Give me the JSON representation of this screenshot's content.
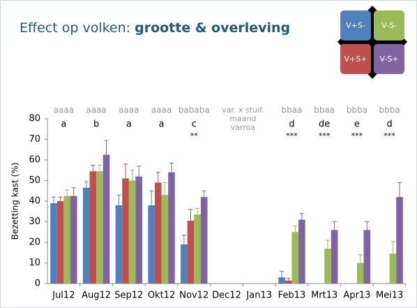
{
  "chart_data": {
    "type": "bar",
    "title_parts": [
      "Effect op volken:",
      "grootte & overleving"
    ],
    "ylabel": "Bezetting kast (%)",
    "categories": [
      "Jul12",
      "Aug12",
      "Sep12",
      "Okt12",
      "Nov12",
      "Dec12",
      "Jan13",
      "Feb13",
      "Mrt13",
      "Apr13",
      "Mei13"
    ],
    "series": [
      {
        "name": "V+S-",
        "color": "#4f81bd",
        "values": [
          39,
          46.5,
          38,
          38,
          19,
          null,
          null,
          3,
          null,
          null,
          null
        ],
        "errors": [
          3,
          3,
          5,
          7,
          4.5,
          null,
          null,
          3,
          null,
          null,
          null
        ]
      },
      {
        "name": "V+S+",
        "color": "#c0504d",
        "values": [
          40,
          54.5,
          51,
          49,
          30.5,
          null,
          null,
          1.5,
          null,
          null,
          null
        ],
        "errors": [
          2,
          3,
          7,
          5,
          5.5,
          null,
          null,
          1,
          null,
          null,
          null
        ]
      },
      {
        "name": "V-S-",
        "color": "#9bbb59",
        "values": [
          42.5,
          54.5,
          50,
          43,
          33.5,
          null,
          null,
          25,
          17,
          10,
          14.5
        ],
        "errors": [
          3,
          3,
          5,
          6,
          3,
          null,
          null,
          3,
          4,
          4,
          6
        ]
      },
      {
        "name": "V-S+",
        "color": "#8064a2",
        "values": [
          42.5,
          62.5,
          52,
          54,
          42,
          null,
          null,
          31,
          26,
          26,
          42
        ],
        "errors": [
          4,
          7,
          5,
          4.5,
          3,
          null,
          null,
          3,
          4,
          4,
          7
        ]
      }
    ],
    "annotation_rows": [
      [
        "aaaa",
        "aaaa",
        "aaaa",
        "aaaa",
        "bababa",
        null,
        null,
        "bbaa",
        "bbaa",
        "bbba",
        "bbba"
      ],
      [
        "a",
        "b",
        "a",
        "a",
        "c",
        null,
        null,
        "d",
        "de",
        "e",
        "d"
      ],
      [
        null,
        null,
        null,
        null,
        "**",
        null,
        null,
        "***",
        "***",
        "***",
        "***"
      ]
    ],
    "factor_note": [
      "var. x stuif.",
      "maand",
      "varroa"
    ],
    "ylim": [
      0,
      80
    ],
    "yticks": [
      0,
      10,
      20,
      30,
      40,
      50,
      60,
      70,
      80
    ],
    "grid": false
  }
}
